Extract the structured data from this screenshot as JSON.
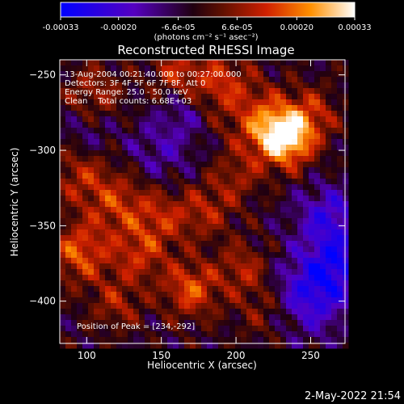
{
  "chart_data": {
    "type": "heatmap",
    "title": "Reconstructed RHESSI Image",
    "xlabel": "Heliocentric X (arcsec)",
    "ylabel": "Heliocentric Y (arcsec)",
    "xlim": [
      82,
      273
    ],
    "ylim": [
      -428,
      -240
    ],
    "x_ticks": [
      100,
      150,
      200,
      250
    ],
    "y_ticks": [
      -400,
      -350,
      -300,
      -250
    ],
    "colorbar": {
      "range": [
        -0.00033,
        0.00033
      ],
      "ticks": [
        "-0.00033",
        "-0.00020",
        "-6.6e-05",
        "6.6e-05",
        "0.00020",
        "0.00033"
      ],
      "ticks_pos": [
        -0.00033,
        -0.0002,
        -6.6e-05,
        6.6e-05,
        0.0002,
        0.00033
      ],
      "unit": "(photons cm⁻² s⁻¹ asec⁻²)"
    },
    "annotations": {
      "time": "13-Aug-2004 00:21:40.000 to 00:27:00.000",
      "detectors": "Detectors: 3F 4F 5F 6F 7F 8F, Att 0",
      "energy": "Energy Range: 25.0 - 50.0 keV",
      "clean": "Clean    Total counts: 6.68E+03",
      "peak": "Position of Peak = [234,-292]"
    },
    "peak": [
      234,
      -292
    ],
    "blobs": [
      {
        "x": 234,
        "y": -292,
        "amp": 0.00033,
        "s": 13
      },
      {
        "x": 218,
        "y": -282,
        "amp": 0.00018,
        "s": 16
      },
      {
        "x": 252,
        "y": -275,
        "amp": 0.00012,
        "s": 12
      },
      {
        "x": 190,
        "y": -255,
        "amp": 0.00016,
        "s": 14
      },
      {
        "x": 160,
        "y": -248,
        "amp": 0.00014,
        "s": 12
      },
      {
        "x": 105,
        "y": -262,
        "amp": 0.00012,
        "s": 14
      },
      {
        "x": 95,
        "y": -315,
        "amp": 0.00013,
        "s": 14
      },
      {
        "x": 120,
        "y": -335,
        "amp": 0.00015,
        "s": 15
      },
      {
        "x": 150,
        "y": -345,
        "amp": 0.00013,
        "s": 14
      },
      {
        "x": 180,
        "y": -340,
        "amp": 0.00012,
        "s": 13
      },
      {
        "x": 95,
        "y": -368,
        "amp": 0.0002,
        "s": 14
      },
      {
        "x": 135,
        "y": -370,
        "amp": 0.00014,
        "s": 13
      },
      {
        "x": 170,
        "y": -392,
        "amp": 0.0002,
        "s": 13
      },
      {
        "x": 205,
        "y": -378,
        "amp": 0.00013,
        "s": 12
      },
      {
        "x": 120,
        "y": -402,
        "amp": 0.00012,
        "s": 12
      },
      {
        "x": 220,
        "y": -405,
        "amp": 0.0001,
        "s": 14
      },
      {
        "x": 200,
        "y": -318,
        "amp": 0.0001,
        "s": 12
      },
      {
        "x": 262,
        "y": -345,
        "amp": -0.00018,
        "s": 15
      },
      {
        "x": 250,
        "y": -395,
        "amp": -0.00022,
        "s": 18
      },
      {
        "x": 268,
        "y": -375,
        "amp": -0.00016,
        "s": 13
      },
      {
        "x": 150,
        "y": -300,
        "amp": -0.0001,
        "s": 16
      },
      {
        "x": 100,
        "y": -290,
        "amp": -8e-05,
        "s": 12
      },
      {
        "x": 165,
        "y": -275,
        "amp": -8e-05,
        "s": 10
      }
    ]
  },
  "footer": {
    "timestamp": "2-May-2022 21:54"
  }
}
